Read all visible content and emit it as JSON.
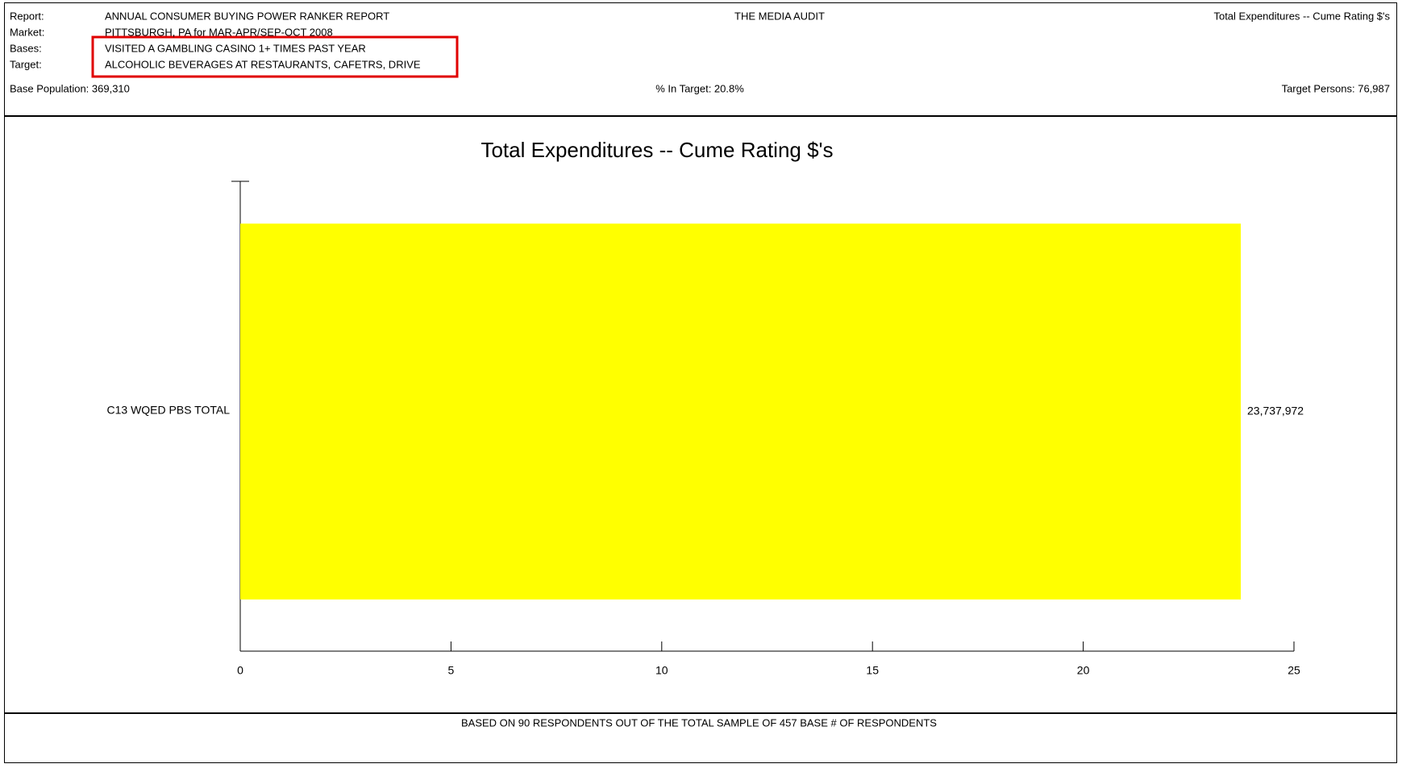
{
  "header": {
    "rows": [
      {
        "label": "Report:",
        "value": "ANNUAL CONSUMER BUYING POWER RANKER REPORT"
      },
      {
        "label": "Market:",
        "value": "PITTSBURGH, PA for MAR-APR/SEP-OCT 2008"
      },
      {
        "label": "Bases:",
        "value": "VISITED A GAMBLING CASINO 1+ TIMES PAST YEAR"
      },
      {
        "label": "Target:",
        "value": "ALCOHOLIC BEVERAGES AT RESTAURANTS, CAFETRS, DRIVE"
      }
    ],
    "center": "THE MEDIA AUDIT",
    "right": "Total Expenditures -- Cume Rating $'s",
    "base_population": "Base Population: 369,310",
    "pct_in_target": "% In Target: 20.8%",
    "target_persons": "Target Persons: 76,987"
  },
  "chart_data": {
    "type": "hbar",
    "title": "Total Expenditures -- Cume Rating $'s",
    "categories": [
      "C13 WQED PBS TOTAL"
    ],
    "values": [
      23.737972
    ],
    "value_labels": [
      "23,737,972"
    ],
    "color": "#ffff00",
    "xlim": [
      0,
      25
    ],
    "xticks": [
      0,
      5,
      10,
      15,
      20,
      25
    ]
  },
  "footer": "BASED ON 90 RESPONDENTS OUT OF THE TOTAL SAMPLE OF 457 BASE # OF RESPONDENTS"
}
